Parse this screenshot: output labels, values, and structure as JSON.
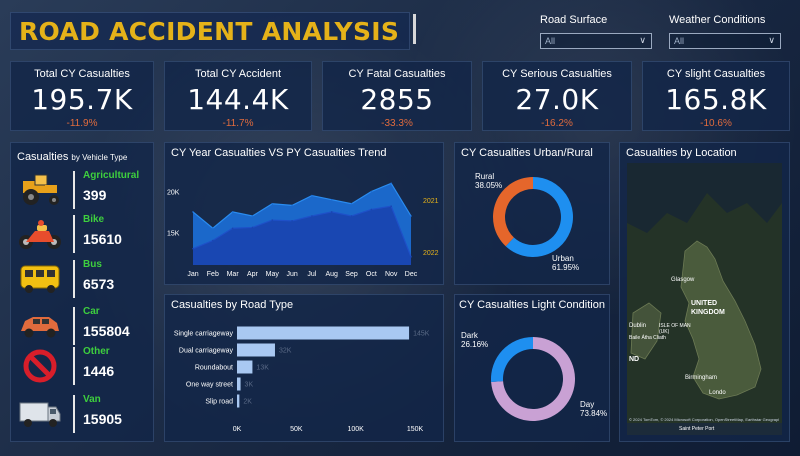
{
  "title": "ROAD ACCIDENT ANALYSIS",
  "slicers": [
    {
      "label": "Road Surface",
      "value": "All"
    },
    {
      "label": "Weather Conditions",
      "value": "All"
    }
  ],
  "kpis": [
    {
      "label": "Total CY Casualties",
      "value": "195.7K",
      "change": "-11.9%"
    },
    {
      "label": "Total CY Accident",
      "value": "144.4K",
      "change": "-11.7%"
    },
    {
      "label": "CY Fatal Casualties",
      "value": "2855",
      "change": "-33.3%"
    },
    {
      "label": "CY Serious Casualties",
      "value": "27.0K",
      "change": "-16.2%"
    },
    {
      "label": "CY slight Casualties",
      "value": "165.8K",
      "change": "-10.6%"
    }
  ],
  "vehicle_panel": {
    "title": "Casualties",
    "title_small": "by Vehicle Type",
    "items": [
      {
        "name": "Agricultural",
        "value": "399",
        "icon": "tractor-icon",
        "color": "#e8a11a"
      },
      {
        "name": "Bike",
        "value": "15610",
        "icon": "motorbike-icon",
        "color": "#e84d2d"
      },
      {
        "name": "Bus",
        "value": "6573",
        "icon": "bus-icon",
        "color": "#f2c012"
      },
      {
        "name": "Car",
        "value": "155804",
        "icon": "car-icon",
        "color": "#e06b3d"
      },
      {
        "name": "Other",
        "value": "1446",
        "icon": "prohibited-icon",
        "color": "#d81e2a"
      },
      {
        "name": "Van",
        "value": "15905",
        "icon": "van-icon",
        "color": "#dfe4ea"
      }
    ]
  },
  "trend": {
    "title": "CY Year Casualties VS PY Casualties Trend",
    "series_labels": [
      "2021",
      "2022"
    ]
  },
  "urban": {
    "title": "CY Casualties Urban/Rural",
    "labels": [
      {
        "name": "Rural",
        "pct": "38.05%"
      },
      {
        "name": "Urban",
        "pct": "61.95%"
      }
    ]
  },
  "light": {
    "title": "CY Casualties Light Condition",
    "labels": [
      {
        "name": "Dark",
        "pct": "26.16%"
      },
      {
        "name": "Day",
        "pct": "73.84%"
      }
    ]
  },
  "road": {
    "title": "Casualties by Road Type"
  },
  "location": {
    "title": "Casualties by Location",
    "map_labels": [
      "UNITED",
      "KINGDOM",
      "Glasgow",
      "ISLE OF MAN",
      "(UK)",
      "Dublin",
      "Baile Átha Cliath",
      "Birmingham",
      "Londo",
      "Saint Peter Port",
      "ND"
    ],
    "attribution": "© 2024 TomTom, © 2024 Microsoft Corporation, OpenStreetMap, Earthstar Geographics (SIO)"
  },
  "chart_data": [
    {
      "type": "area",
      "title": "CY Year Casualties VS PY Casualties Trend",
      "categories": [
        "Jan",
        "Feb",
        "Mar",
        "Apr",
        "May",
        "Jun",
        "Jul",
        "Aug",
        "Sep",
        "Oct",
        "Nov",
        "Dec"
      ],
      "y_ticks": [
        "20K",
        "15K"
      ],
      "ylim": [
        11000,
        23000
      ],
      "series": [
        {
          "name": "2021",
          "values": [
            17500,
            15500,
            17500,
            17000,
            18500,
            18300,
            19500,
            19000,
            18500,
            20000,
            21000,
            17000
          ],
          "color": "#1c6fd8"
        },
        {
          "name": "2022",
          "values": [
            13000,
            14000,
            15500,
            15600,
            16500,
            16400,
            17000,
            17500,
            17000,
            17800,
            18200,
            12000
          ],
          "color": "#1946b0"
        }
      ]
    },
    {
      "type": "bar",
      "title": "Casualties by Road Type",
      "categories": [
        "Single carriageway",
        "Dual carriageway",
        "Roundabout",
        "One way street",
        "Slip road"
      ],
      "values": [
        145000,
        32000,
        13000,
        3000,
        2000
      ],
      "value_labels": [
        "145K",
        "32K",
        "13K",
        "3K",
        "2K"
      ],
      "x_ticks": [
        "0K",
        "50K",
        "100K",
        "150K"
      ],
      "xlim": [
        0,
        150000
      ],
      "color": "#a9c8f2"
    },
    {
      "type": "pie",
      "title": "CY Casualties Urban/Rural",
      "categories": [
        "Urban",
        "Rural"
      ],
      "values": [
        61.95,
        38.05
      ],
      "colors": [
        "#1e8ff0",
        "#e5662b"
      ]
    },
    {
      "type": "pie",
      "title": "CY Casualties Light Condition",
      "categories": [
        "Day",
        "Dark"
      ],
      "values": [
        73.84,
        26.16
      ],
      "colors": [
        "#c9a1d4",
        "#1e8ff0"
      ]
    }
  ]
}
